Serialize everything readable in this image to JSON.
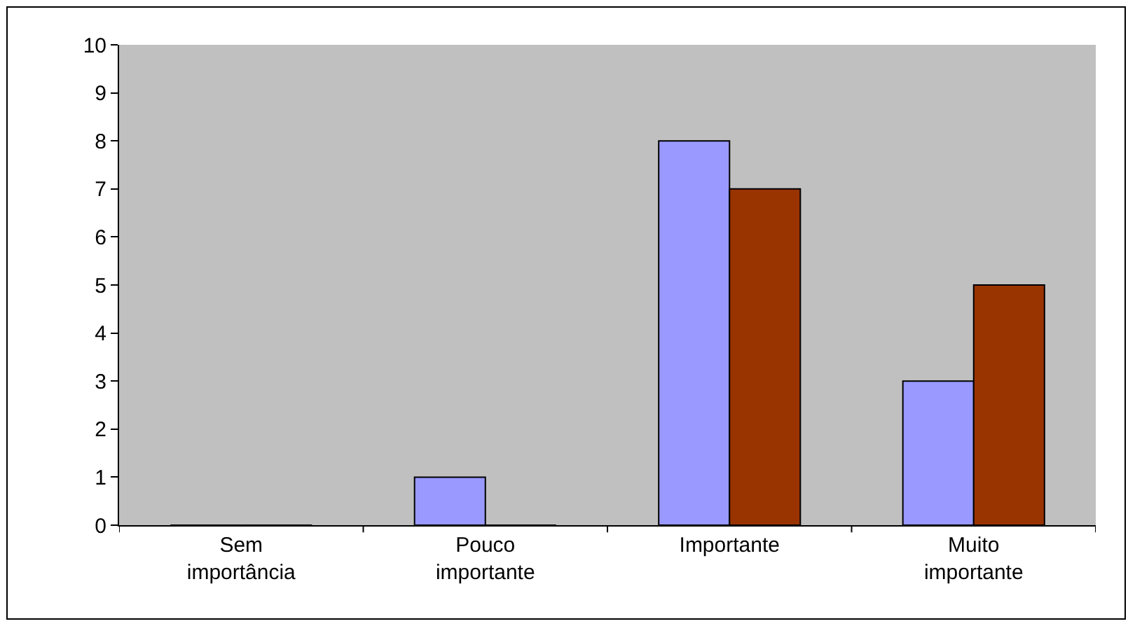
{
  "chart_data": {
    "type": "bar",
    "categories": [
      "Sem importância",
      "Pouco importante",
      "Importante",
      "Muito importante"
    ],
    "series": [
      {
        "color": "#9999ff",
        "values": [
          0,
          1,
          8,
          3
        ]
      },
      {
        "color": "#993300",
        "values": [
          0,
          0,
          7,
          5
        ]
      }
    ],
    "ylim": [
      0,
      10
    ],
    "yticks": [
      0,
      1,
      2,
      3,
      4,
      5,
      6,
      7,
      8,
      9,
      10
    ],
    "grid": false
  }
}
